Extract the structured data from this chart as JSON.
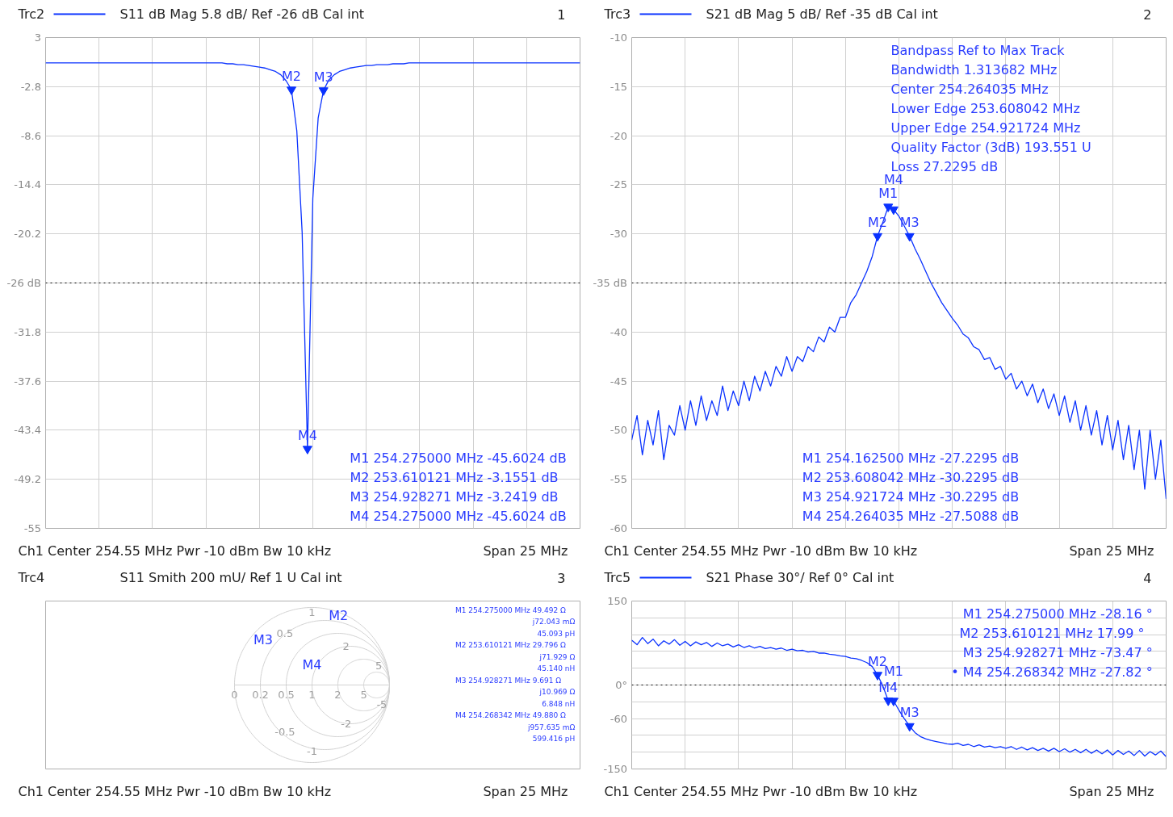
{
  "chart_data": [
    {
      "type": "line",
      "title": "S11  dB Mag  5.8 dB/ Ref -26 dB  Cal int",
      "xlabel": "Ch1  Center  254.55 MHz  Pwr  -10 dBm  Bw  10 kHz",
      "categories": [
        null,
        null,
        null,
        null,
        null,
        null,
        null,
        null,
        null,
        null,
        null,
        null,
        null,
        null,
        null,
        null,
        null,
        null,
        null,
        null,
        null,
        null,
        null,
        null,
        null,
        null,
        null,
        null,
        null,
        null,
        null,
        null,
        null,
        null,
        null,
        null,
        null,
        null,
        null,
        null,
        null,
        null,
        null,
        null,
        null,
        null,
        null,
        null,
        null,
        null,
        null,
        null,
        null,
        null,
        null,
        null,
        null,
        null,
        null,
        null,
        null,
        null,
        null,
        null,
        null,
        null,
        null,
        null,
        null,
        null,
        null,
        null,
        null,
        null,
        null,
        null,
        null,
        null,
        null,
        null,
        null,
        null,
        null,
        null,
        null,
        null,
        null,
        null,
        null,
        null,
        null,
        null,
        null,
        null,
        null,
        null,
        null,
        null,
        null,
        null,
        null
      ],
      "series": [
        {
          "name": "Trc2",
          "color": "#0a32ff",
          "values": [
            0,
            0,
            0,
            0,
            0,
            0,
            0,
            0,
            0,
            0,
            0,
            0,
            0,
            0,
            0,
            0,
            0,
            0,
            0,
            0,
            0,
            0,
            0,
            0,
            0,
            0,
            0,
            0,
            0,
            0,
            0,
            0,
            0,
            0,
            -0.1,
            -0.1,
            -0.2,
            -0.2,
            -0.3,
            -0.4,
            -0.5,
            -0.6,
            -0.8,
            -1,
            -1.4,
            -2.1,
            -3.1551,
            -8,
            -20,
            -45.6024,
            -16,
            -6.5,
            -3.2419,
            -2,
            -1.4,
            -1,
            -0.8,
            -0.6,
            -0.5,
            -0.4,
            -0.3,
            -0.3,
            -0.2,
            -0.2,
            -0.2,
            -0.1,
            -0.1,
            -0.1,
            0,
            0,
            0,
            0,
            0,
            0,
            0,
            0,
            0,
            0,
            0,
            0,
            0,
            0,
            0,
            0,
            0,
            0,
            0,
            0,
            0,
            0,
            0,
            0,
            0,
            0,
            0,
            0,
            0,
            0,
            0,
            0,
            0
          ]
        }
      ],
      "ylim": [
        -55,
        3
      ],
      "yticks": [
        3,
        -2.8,
        -8.6,
        -14.4,
        -20.2,
        {
          "value": -26,
          "label": "-26 dB"
        },
        -31.8,
        -37.6,
        -43.4,
        -49.2,
        -55
      ],
      "grid": true,
      "legend": "top left",
      "ref_lines": [
        {
          "axis": "y",
          "value": -26,
          "color": "#000000",
          "line_style": "dotted"
        }
      ],
      "annotations": [
        "1",
        "Span  25 MHz",
        "M1  254.275000 MHz  -45.6024 dB",
        "M2  253.610121 MHz    -3.1551 dB",
        "M3  254.928271 MHz    -3.2419 dB",
        "M4  254.275000 MHz  -45.6024 dB",
        {
          "text": "M2",
          "y": -3.1551
        },
        {
          "text": "M3",
          "y": -3.2419
        },
        {
          "text": "M4",
          "y": -45.6024
        }
      ]
    },
    {
      "type": "line",
      "title": "S21  dB Mag  5 dB/ Ref -35 dB  Cal int",
      "xlabel": "Ch1  Center  254.55 MHz  Pwr  -10 dBm  Bw  10 kHz",
      "categories": [
        null,
        null,
        null,
        null,
        null,
        null,
        null,
        null,
        null,
        null,
        null,
        null,
        null,
        null,
        null,
        null,
        null,
        null,
        null,
        null,
        null,
        null,
        null,
        null,
        null,
        null,
        null,
        null,
        null,
        null,
        null,
        null,
        null,
        null,
        null,
        null,
        null,
        null,
        null,
        null,
        null,
        null,
        null,
        null,
        null,
        null,
        null,
        null,
        null,
        null,
        null,
        null,
        null,
        null,
        null,
        null,
        null,
        null,
        null,
        null,
        null,
        null,
        null,
        null,
        null,
        null,
        null,
        null,
        null,
        null,
        null,
        null,
        null,
        null,
        null,
        null,
        null,
        null,
        null,
        null,
        null,
        null,
        null,
        null,
        null,
        null,
        null,
        null,
        null,
        null,
        null,
        null,
        null,
        null,
        null,
        null,
        null,
        null,
        null,
        null,
        null
      ],
      "series": [
        {
          "name": "Trc3",
          "color": "#0a32ff",
          "values": [
            -51,
            -48.5,
            -52.5,
            -49,
            -51.5,
            -48,
            -53,
            -49.5,
            -50.5,
            -47.5,
            -50,
            -47,
            -49.5,
            -46.5,
            -49,
            -47,
            -48.5,
            -45.5,
            -48,
            -46,
            -47.5,
            -45,
            -47,
            -44.5,
            -46,
            -44,
            -45.5,
            -43.5,
            -44.5,
            -42.5,
            -44,
            -42.5,
            -43,
            -41.5,
            -42,
            -40.5,
            -41,
            -39.5,
            -40,
            -38.5,
            -38.5,
            -37,
            -36.2,
            -35,
            -33.8,
            -32.3,
            -30.2295,
            -28.8,
            -27.2295,
            -27.5088,
            -28.2,
            -29.2,
            -30.2295,
            -31.5,
            -32.6,
            -33.8,
            -35,
            -36,
            -37,
            -37.8,
            -38.6,
            -39.3,
            -40.2,
            -40.6,
            -41.5,
            -41.8,
            -42.8,
            -42.6,
            -43.8,
            -43.5,
            -44.8,
            -44.2,
            -45.8,
            -45,
            -46.5,
            -45.3,
            -47.2,
            -45.8,
            -47.8,
            -46.3,
            -48.5,
            -46.5,
            -49.2,
            -47,
            -50,
            -47.5,
            -50.5,
            -48,
            -51.5,
            -48.5,
            -52,
            -49,
            -53,
            -49.5,
            -54,
            -50,
            -56,
            -50,
            -55,
            -51,
            -57
          ]
        }
      ],
      "ylim": [
        -60,
        -10
      ],
      "yticks": [
        -10,
        -15,
        -20,
        -25,
        -30,
        {
          "value": -35,
          "label": "-35 dB"
        },
        -40,
        -45,
        -50,
        -55,
        -60
      ],
      "grid": true,
      "legend": "top left",
      "ref_lines": [
        {
          "axis": "y",
          "value": -35,
          "color": "#000000",
          "line_style": "dotted"
        }
      ],
      "annotations": [
        "2",
        "Span  25 MHz",
        "Bandpass                    Ref to Max   Track",
        "Bandwidth                      1.313682  MHz",
        "Center                        254.264035  MHz",
        "Lower Edge                253.608042  MHz",
        "Upper Edge                254.921724  MHz",
        "Quality Factor (3dB)        193.551  U",
        "Loss                                27.2295  dB",
        "M1  254.162500 MHz  -27.2295 dB",
        "M2  253.608042 MHz  -30.2295 dB",
        "M3  254.921724 MHz  -30.2295 dB",
        "M4  254.264035 MHz  -27.5088 dB",
        {
          "text": "M1",
          "y": -27.2295
        },
        {
          "text": "M4",
          "y": -27.5088
        },
        {
          "text": "M2",
          "y": -30.2295
        },
        {
          "text": "M3",
          "y": -30.2295
        }
      ]
    },
    {
      "type": "other",
      "title": "Trc4",
      "subtitle": "S11  Smith  200 mU/ Ref 1 U  Cal int",
      "xlabel": "Ch1  Center  254.55 MHz  Pwr  -10 dBm  Bw  10 kHz",
      "annotations": [
        "3",
        "Span  25 MHz",
        "M1  254.275000 MHz    49.492  Ω",
        "j72.043  mΩ",
        "45.093  pH",
        "M2  253.610121 MHz    29.796  Ω",
        "j71.929  Ω",
        "45.140  nH",
        "M3  254.928271 MHz      9.691  Ω",
        "j10.969  Ω",
        "6.848  nH",
        "M4  254.268342 MHz    49.880  Ω",
        "j957.635  mΩ",
        "599.416  pH",
        "0",
        "0.2",
        "0.5",
        "1",
        "2",
        "5",
        "0.5",
        "1",
        "2",
        "5",
        "-0.5",
        "-1",
        "-2",
        "-5",
        "M2",
        "M3",
        "M4"
      ]
    },
    {
      "type": "line",
      "title": "S21  Phase  30°/ Ref 0°  Cal int",
      "xlabel": "Ch1  Center  254.55 MHz  Pwr  -10 dBm  Bw  10 kHz",
      "categories": [
        null,
        null,
        null,
        null,
        null,
        null,
        null,
        null,
        null,
        null,
        null,
        null,
        null,
        null,
        null,
        null,
        null,
        null,
        null,
        null,
        null,
        null,
        null,
        null,
        null,
        null,
        null,
        null,
        null,
        null,
        null,
        null,
        null,
        null,
        null,
        null,
        null,
        null,
        null,
        null,
        null,
        null,
        null,
        null,
        null,
        null,
        null,
        null,
        null,
        null,
        null,
        null,
        null,
        null,
        null,
        null,
        null,
        null,
        null,
        null,
        null,
        null,
        null,
        null,
        null,
        null,
        null,
        null,
        null,
        null,
        null,
        null,
        null,
        null,
        null,
        null,
        null,
        null,
        null,
        null,
        null,
        null,
        null,
        null,
        null,
        null,
        null,
        null,
        null,
        null,
        null,
        null,
        null,
        null,
        null,
        null,
        null,
        null,
        null,
        null,
        null
      ],
      "series": [
        {
          "name": "Trc5",
          "color": "#0a32ff",
          "values": [
            80,
            72,
            85,
            74,
            82,
            70,
            79,
            73,
            81,
            71,
            78,
            70,
            77,
            72,
            76,
            69,
            75,
            70,
            73,
            68,
            72,
            67,
            70,
            66,
            69,
            65,
            67,
            64,
            66,
            62,
            64,
            61,
            62,
            59,
            60,
            57,
            57,
            55,
            54,
            52,
            51,
            48,
            47,
            44,
            40,
            33,
            17.99,
            -2,
            -27.82,
            -28.16,
            -45,
            -60,
            -73.47,
            -85,
            -92,
            -96,
            -99,
            -101,
            -103,
            -105,
            -106,
            -104,
            -108,
            -106,
            -110,
            -107,
            -111,
            -109,
            -112,
            -110,
            -113,
            -110,
            -115,
            -111,
            -116,
            -112,
            -117,
            -113,
            -118,
            -113,
            -119,
            -114,
            -120,
            -115,
            -121,
            -115,
            -122,
            -116,
            -123,
            -116,
            -125,
            -117,
            -124,
            -118,
            -126,
            -117,
            -127,
            -119,
            -125,
            -118,
            -128
          ]
        }
      ],
      "ylim": [
        -150,
        150
      ],
      "yticks": [
        150,
        {
          "value": 120,
          "label": null
        },
        {
          "value": 90,
          "label": null
        },
        {
          "value": 60,
          "label": null
        },
        {
          "value": 30,
          "label": null
        },
        {
          "value": 0,
          "label": "0°"
        },
        {
          "value": -30,
          "label": null
        },
        -60,
        {
          "value": -90,
          "label": null
        },
        {
          "value": -120,
          "label": null
        },
        -150
      ],
      "grid": true,
      "legend": "top left",
      "ref_lines": [
        {
          "axis": "y",
          "value": 0,
          "color": "#000000",
          "line_style": "dotted"
        }
      ],
      "annotations": [
        "4",
        "Span  25 MHz",
        "M1  254.275000 MHz  -28.16 °",
        "M2  253.610121 MHz    17.99 °",
        "M3  254.928271 MHz  -73.47 °",
        "• M4  254.268342 MHz  -27.82 °",
        {
          "text": "M2",
          "y": 17.99
        },
        {
          "text": "M4",
          "y": -27.82
        },
        {
          "text": "M1",
          "y": -28.16
        },
        {
          "text": "M3",
          "y": -73.47
        }
      ]
    }
  ]
}
